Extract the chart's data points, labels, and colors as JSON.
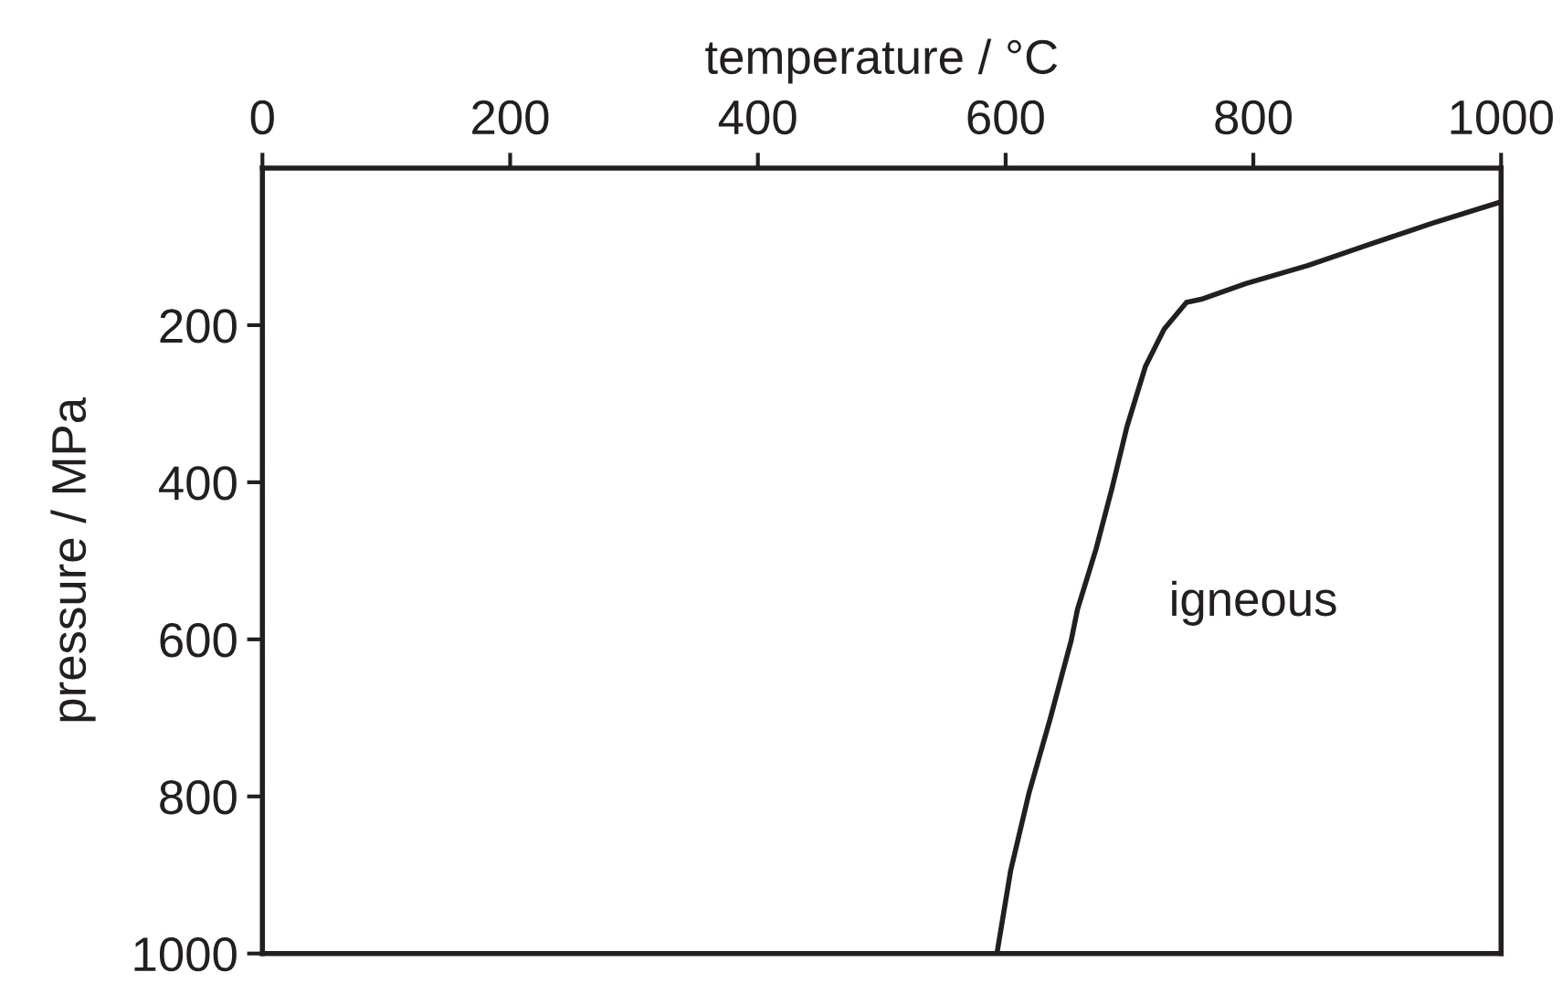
{
  "chart_data": {
    "type": "line",
    "xlabel": "temperature / °C",
    "ylabel": "pressure / MPa",
    "series": [
      {
        "color": "#231f20",
        "x": [
          1000,
          945,
          894,
          844,
          794,
          758,
          746,
          728,
          713,
          698,
          686,
          673,
          658,
          653,
          636,
          619,
          604,
          593
        ],
        "values": [
          43,
          70,
          97,
          124,
          147,
          167,
          171,
          205,
          252,
          329,
          407,
          485,
          562,
          601,
          701,
          795,
          895,
          1000
        ]
      }
    ],
    "xlim": [
      0,
      1000
    ],
    "xticks": [
      0,
      200,
      400,
      600,
      800,
      1000
    ],
    "ylim": [
      1000,
      0
    ],
    "yticks": [
      200,
      400,
      600,
      800,
      1000
    ],
    "annotations": [
      "igneous"
    ],
    "grid": false,
    "legend": false,
    "marker": "none",
    "line_style": "solid"
  }
}
